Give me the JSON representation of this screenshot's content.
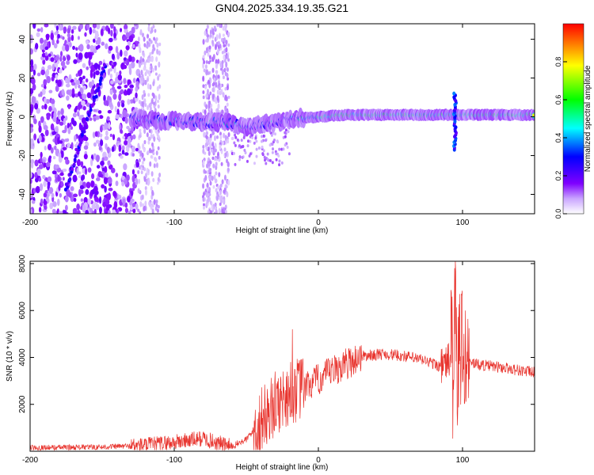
{
  "title": "GN04.2025.334.19.35.G21",
  "chart_data": [
    {
      "type": "heatmap",
      "title": "GN04.2025.334.19.35.G21",
      "xlabel": "Height of straight line (km)",
      "ylabel": "Frequency (Hz)",
      "xlim": [
        -200,
        150
      ],
      "ylim": [
        -50,
        48
      ],
      "xticks": [
        -200,
        -100,
        0,
        100
      ],
      "yticks": [
        -40,
        -20,
        0,
        20,
        40
      ],
      "colorbar": {
        "label": "Normalized spectral amplitude",
        "range": [
          0.0,
          1.0
        ],
        "ticks": [
          0.0,
          0.2,
          0.4,
          0.6,
          0.8
        ],
        "tick_labels": [
          "0.0",
          "0.2",
          "0.4",
          "0.6",
          "0.8"
        ],
        "colormap": [
          "#ffffff",
          "#7f00ff",
          "#0000ff",
          "#00ffff",
          "#00ff00",
          "#ffff00",
          "#ff0000"
        ]
      },
      "dominant_trace": [
        {
          "x": -130,
          "y": -1
        },
        {
          "x": -110,
          "y": -2
        },
        {
          "x": -90,
          "y": -2
        },
        {
          "x": -75,
          "y": -3
        },
        {
          "x": -60,
          "y": -3
        },
        {
          "x": -50,
          "y": -6
        },
        {
          "x": -40,
          "y": -4
        },
        {
          "x": -30,
          "y": -3
        },
        {
          "x": -20,
          "y": -1
        },
        {
          "x": 0,
          "y": 0
        },
        {
          "x": 20,
          "y": 1
        },
        {
          "x": 40,
          "y": 1
        },
        {
          "x": 60,
          "y": 1
        },
        {
          "x": 80,
          "y": 1
        },
        {
          "x": 100,
          "y": 1
        },
        {
          "x": 120,
          "y": 1
        },
        {
          "x": 150,
          "y": 1
        }
      ],
      "features": [
        {
          "label": "diagonal streak",
          "x": [
            -175,
            -148
          ],
          "y": [
            -37,
            27
          ]
        },
        {
          "label": "spike near 95 km",
          "x": 95,
          "y": [
            -17,
            12
          ]
        }
      ]
    },
    {
      "type": "line",
      "title": "",
      "xlabel": "Height of straight line (km)",
      "ylabel": "SNR (10 * v/v)",
      "xlim": [
        -200,
        150
      ],
      "ylim": [
        0,
        8100
      ],
      "xticks": [
        -200,
        -100,
        0,
        100
      ],
      "yticks": [
        2000,
        4000,
        6000,
        8000
      ],
      "color": "#e8332d",
      "series": [
        {
          "name": "SNR",
          "envelope_points": [
            {
              "x": -200,
              "y": 150
            },
            {
              "x": -150,
              "y": 180
            },
            {
              "x": -120,
              "y": 250
            },
            {
              "x": -100,
              "y": 380
            },
            {
              "x": -80,
              "y": 550
            },
            {
              "x": -70,
              "y": 350
            },
            {
              "x": -60,
              "y": 200
            },
            {
              "x": -50,
              "y": 500
            },
            {
              "x": -40,
              "y": 1300
            },
            {
              "x": -30,
              "y": 2000
            },
            {
              "x": -20,
              "y": 2500
            },
            {
              "x": -10,
              "y": 2700
            },
            {
              "x": 0,
              "y": 3050
            },
            {
              "x": 10,
              "y": 3400
            },
            {
              "x": 20,
              "y": 3750
            },
            {
              "x": 30,
              "y": 4050
            },
            {
              "x": 45,
              "y": 4150
            },
            {
              "x": 60,
              "y": 4050
            },
            {
              "x": 75,
              "y": 3850
            },
            {
              "x": 85,
              "y": 3600
            },
            {
              "x": 95,
              "y": 4100
            },
            {
              "x": 100,
              "y": 3950
            },
            {
              "x": 110,
              "y": 3700
            },
            {
              "x": 130,
              "y": 3550
            },
            {
              "x": 150,
              "y": 3350
            }
          ],
          "peaks": [
            {
              "x": -18,
              "y": 5200
            },
            {
              "x": 95,
              "y": 8100
            },
            {
              "x": 102,
              "y": 6000
            }
          ]
        }
      ]
    }
  ]
}
